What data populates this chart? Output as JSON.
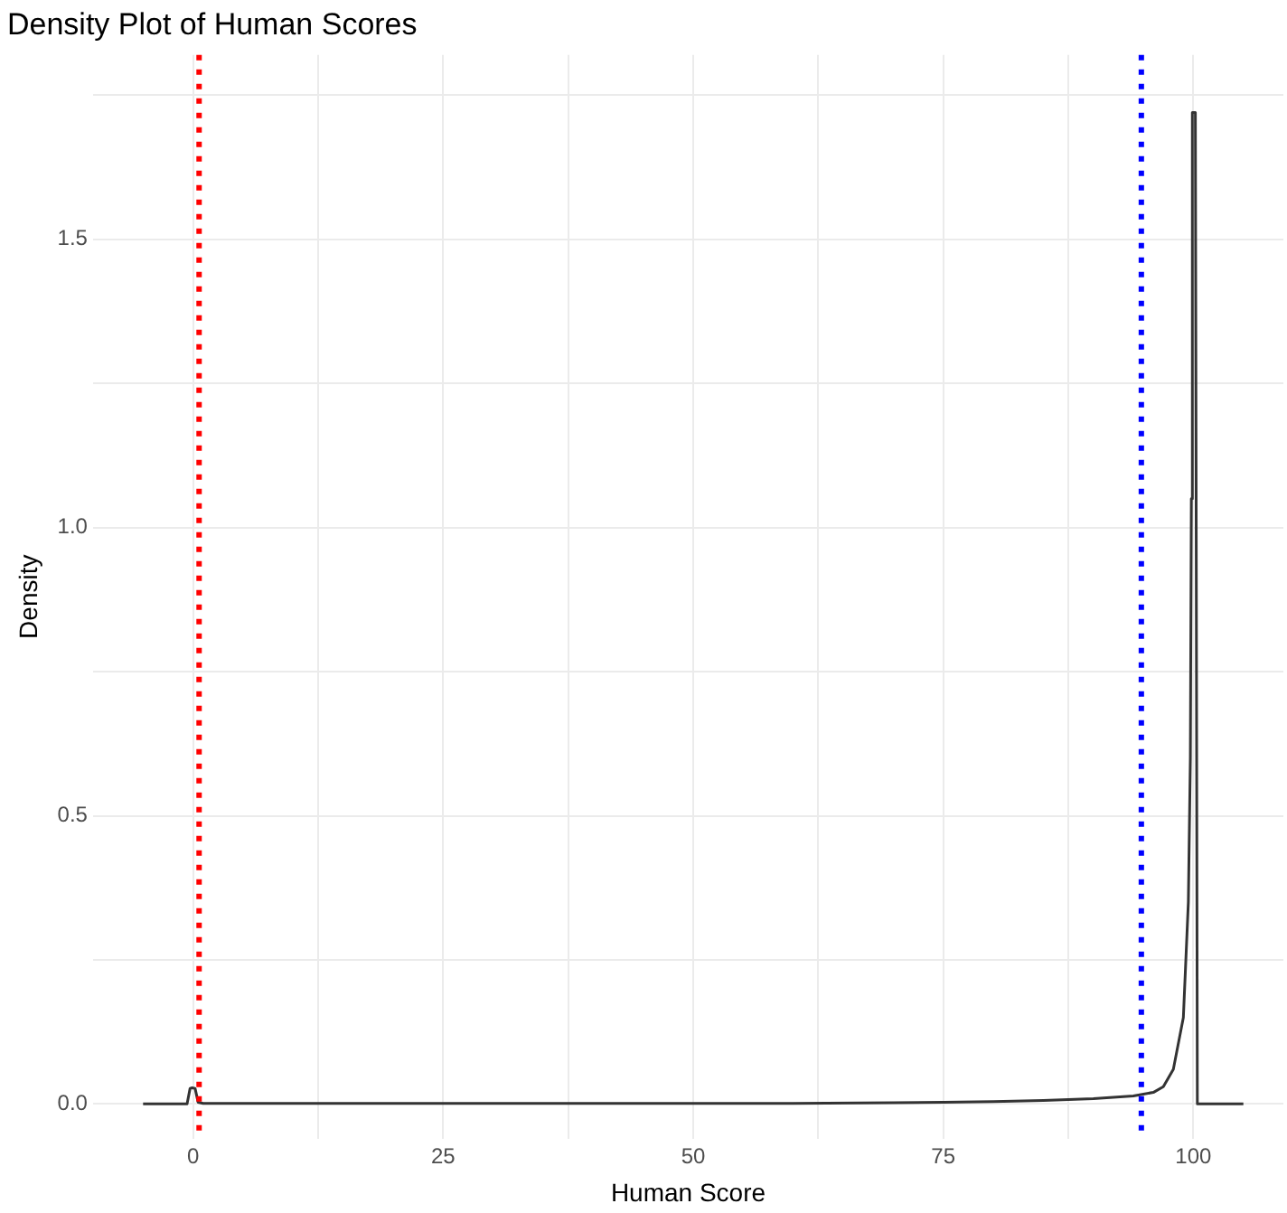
{
  "chart_data": {
    "type": "line",
    "title": "Density Plot of Human Scores",
    "xlabel": "Human Score",
    "ylabel": "Density",
    "x": [
      -5,
      -0.6,
      -0.3,
      -0.1,
      0.2,
      0.5,
      1,
      10,
      30,
      50,
      60,
      70,
      75,
      80,
      85,
      90,
      94,
      96,
      97,
      98,
      99,
      99.5,
      99.7,
      99.8,
      99.9,
      100.2,
      100.4,
      105
    ],
    "series": [
      {
        "color": "#333333",
        "values": [
          0,
          0,
          0.027,
          0.028,
          0.027,
          0.003,
          0.001,
          0.001,
          0.001,
          0.001,
          0.001,
          0.002,
          0.003,
          0.004,
          0.006,
          0.009,
          0.014,
          0.02,
          0.03,
          0.06,
          0.15,
          0.35,
          0.6,
          1.05,
          1.72,
          1.72,
          0,
          0
        ]
      }
    ],
    "xlim": [
      -10,
      109
    ],
    "ylim": [
      -0.06,
      1.82
    ],
    "xticks": [
      0,
      {
        "value": 12.5,
        "label": null
      },
      25,
      {
        "value": 37.5,
        "label": null
      },
      50,
      {
        "value": 62.5,
        "label": null
      },
      75,
      {
        "value": 87.5,
        "label": null
      },
      100
    ],
    "yticks": [
      {
        "value": 0,
        "label": "0.0"
      },
      {
        "value": 0.25,
        "label": null
      },
      0.5,
      {
        "value": 0.75,
        "label": null
      },
      {
        "value": 1,
        "label": "1.0"
      },
      {
        "value": 1.25,
        "label": null
      },
      1.5,
      {
        "value": 1.75,
        "label": null
      }
    ],
    "ref_lines": [
      {
        "axis": "x",
        "value": 0.6,
        "color": "#ff0000",
        "line_style": "dotted"
      },
      {
        "axis": "x",
        "value": 94.8,
        "color": "#0000ff",
        "line_style": "dotted"
      }
    ],
    "grid": true,
    "legend": false,
    "marker": "none",
    "line_style": "solid"
  }
}
